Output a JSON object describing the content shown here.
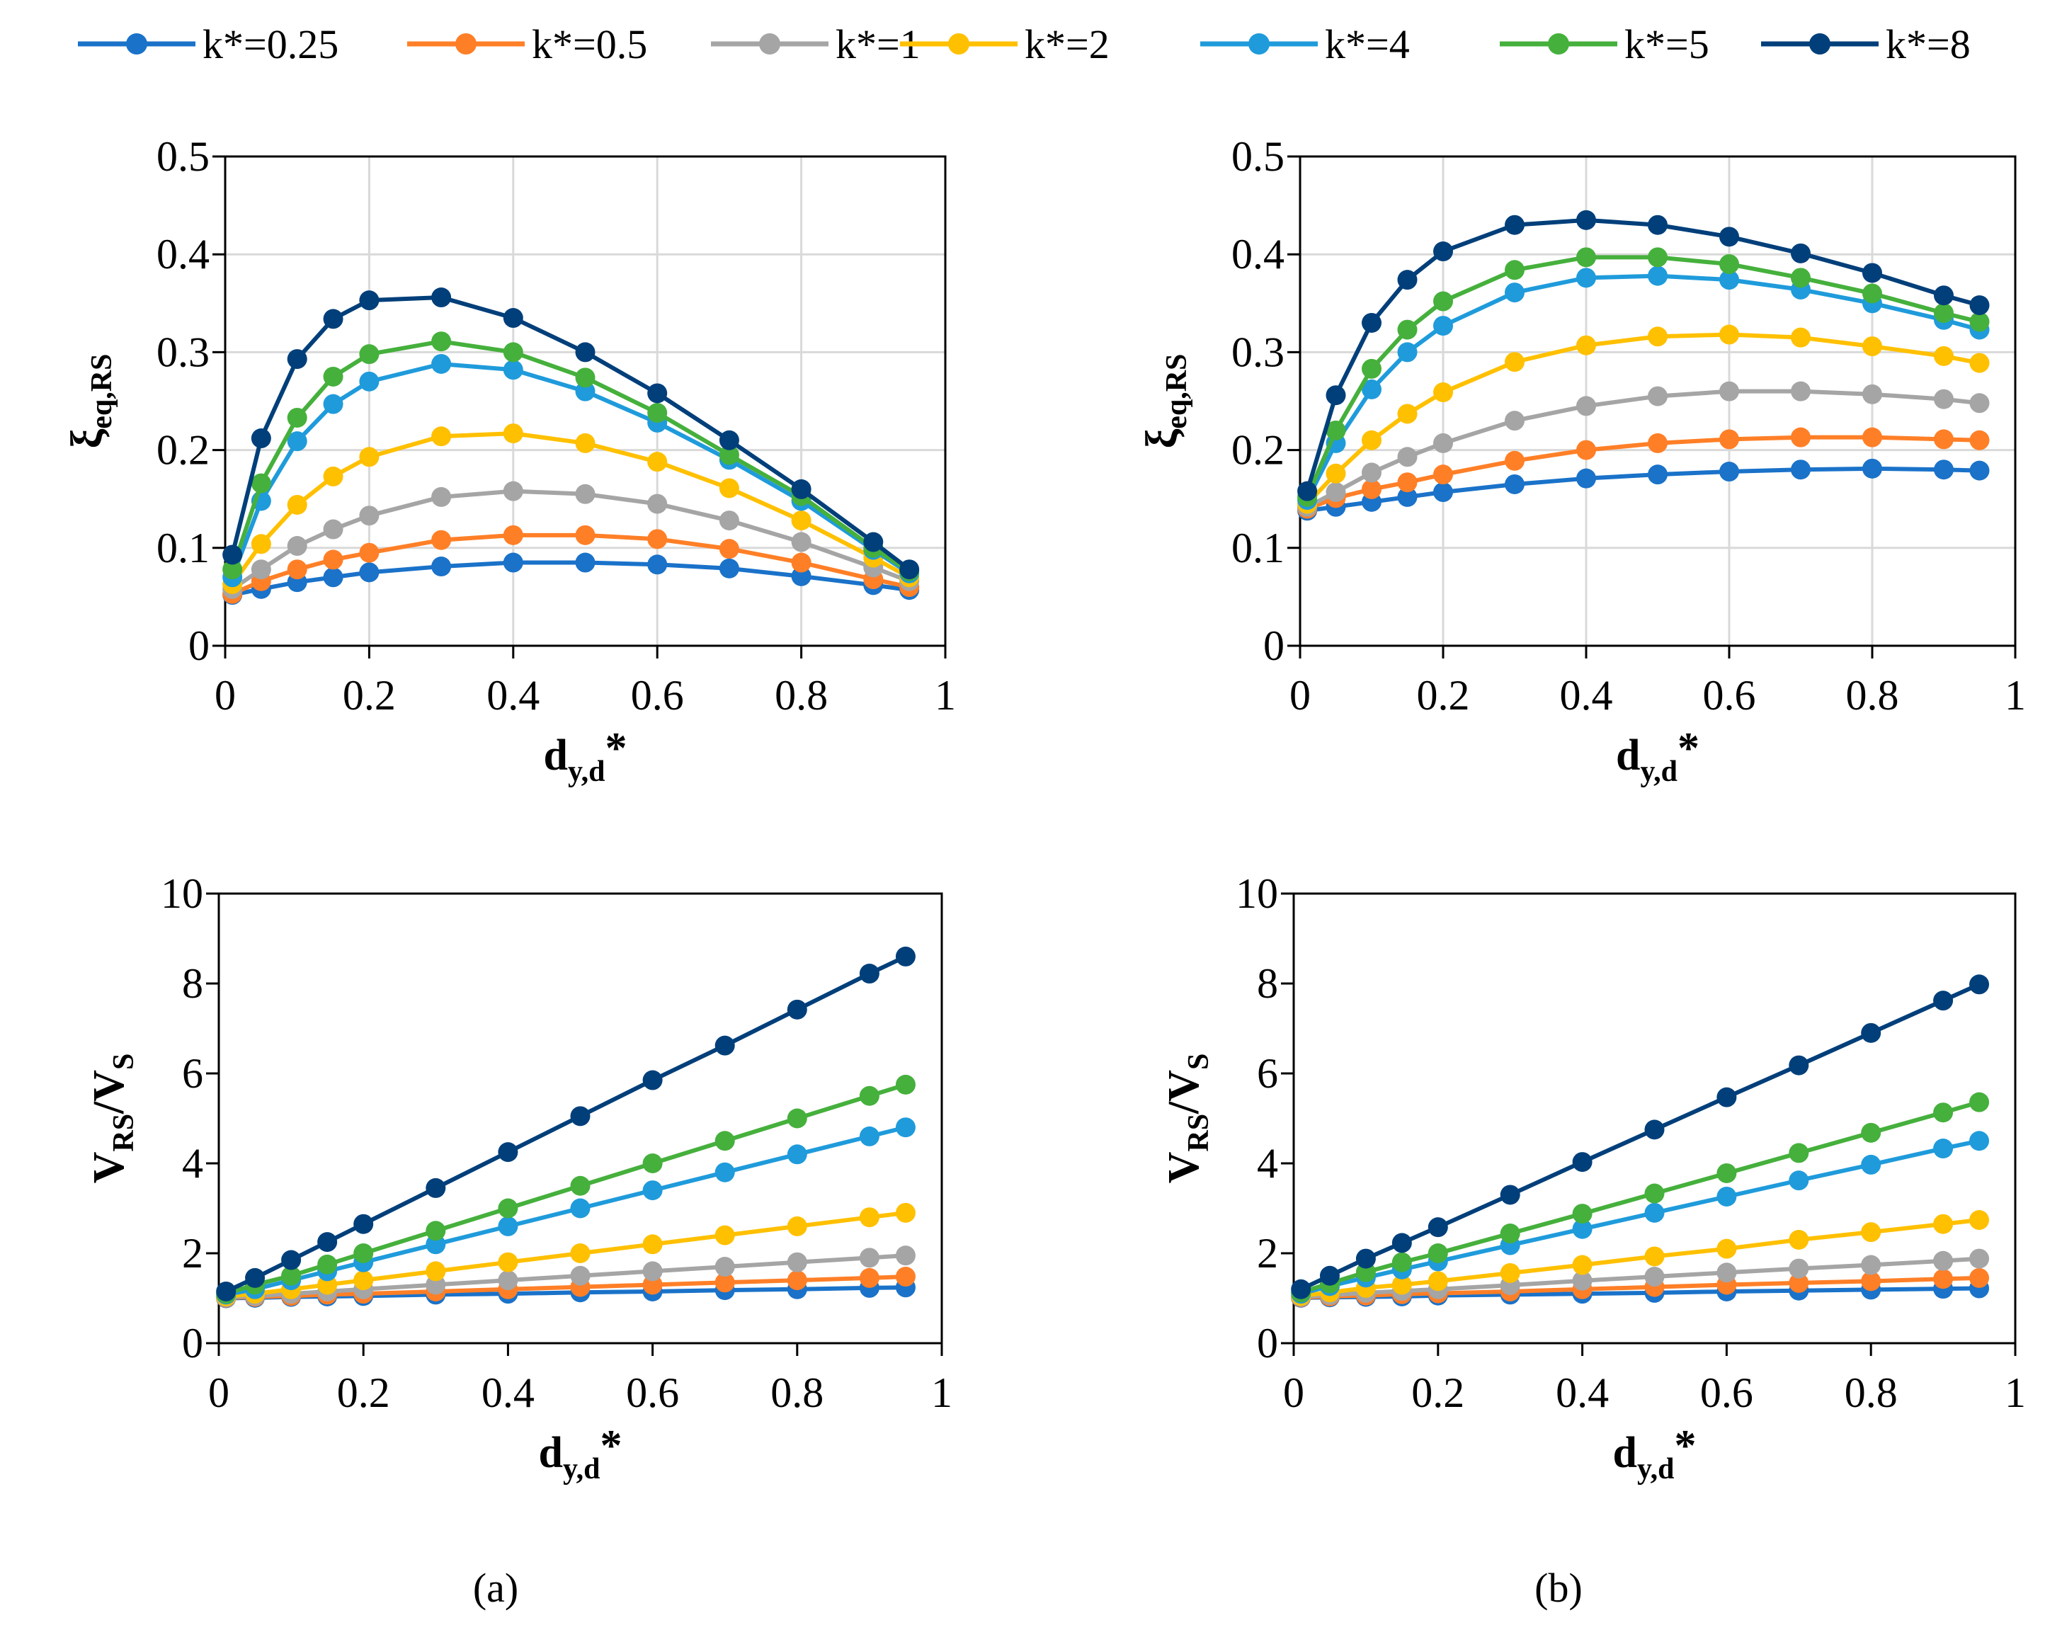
{
  "colors": {
    "k*=0.25": "#1A72C9",
    "k*=0.5": "#FF7F27",
    "k*=1": "#A5A5A5",
    "k*=2": "#FFC000",
    "k*=4": "#1F9BDB",
    "k*=5": "#45B03C",
    "k*=8": "#003F7A",
    "grid": "#D9D9D9"
  },
  "legend": [
    "k*=0.25",
    "k*=0.5",
    "k*=1",
    "k*=2",
    "k*=4",
    "k*=5",
    "k*=8"
  ],
  "panel_labels": [
    "(a)",
    "(b)"
  ],
  "chart_data": [
    {
      "id": "a-top",
      "type": "line",
      "panel": "(a)",
      "xlabel": {
        "main": "d",
        "sub": "y,d",
        "sup": "*"
      },
      "ylabel": {
        "main": "ξ",
        "sub": "eq,RS"
      },
      "xlim": [
        0,
        1
      ],
      "ylim": [
        0,
        0.5
      ],
      "xticks": [
        "0",
        "0.2",
        "0.4",
        "0.6",
        "0.8",
        "1"
      ],
      "yticks": [
        "0",
        "0.1",
        "0.2",
        "0.3",
        "0.4",
        "0.5"
      ],
      "grid": true,
      "x": [
        0.01,
        0.05,
        0.1,
        0.15,
        0.2,
        0.3,
        0.4,
        0.5,
        0.6,
        0.7,
        0.8,
        0.9,
        0.95
      ],
      "series": [
        {
          "name": "k*=0.25",
          "values": [
            0.052,
            0.058,
            0.065,
            0.07,
            0.075,
            0.081,
            0.085,
            0.085,
            0.083,
            0.079,
            0.071,
            0.062,
            0.057
          ]
        },
        {
          "name": "k*=0.5",
          "values": [
            0.053,
            0.066,
            0.078,
            0.088,
            0.095,
            0.108,
            0.113,
            0.113,
            0.109,
            0.099,
            0.085,
            0.068,
            0.06
          ]
        },
        {
          "name": "k*=1",
          "values": [
            0.058,
            0.078,
            0.102,
            0.119,
            0.133,
            0.152,
            0.158,
            0.155,
            0.145,
            0.128,
            0.106,
            0.08,
            0.066
          ]
        },
        {
          "name": "k*=2",
          "values": [
            0.063,
            0.104,
            0.144,
            0.173,
            0.193,
            0.214,
            0.217,
            0.207,
            0.188,
            0.161,
            0.128,
            0.09,
            0.07
          ]
        },
        {
          "name": "k*=4",
          "values": [
            0.07,
            0.148,
            0.209,
            0.247,
            0.27,
            0.288,
            0.282,
            0.26,
            0.228,
            0.19,
            0.148,
            0.098,
            0.074
          ]
        },
        {
          "name": "k*=5",
          "values": [
            0.078,
            0.166,
            0.233,
            0.275,
            0.298,
            0.311,
            0.3,
            0.274,
            0.238,
            0.195,
            0.153,
            0.1,
            0.076
          ]
        },
        {
          "name": "k*=8",
          "values": [
            0.093,
            0.212,
            0.293,
            0.334,
            0.353,
            0.356,
            0.335,
            0.3,
            0.258,
            0.21,
            0.16,
            0.106,
            0.078
          ]
        }
      ]
    },
    {
      "id": "b-top",
      "type": "line",
      "panel": "(b)",
      "xlabel": {
        "main": "d",
        "sub": "y,d",
        "sup": "*"
      },
      "ylabel": {
        "main": "ξ",
        "sub": "eq,RS"
      },
      "xlim": [
        0,
        1
      ],
      "ylim": [
        0,
        0.5
      ],
      "xticks": [
        "0",
        "0.2",
        "0.4",
        "0.6",
        "0.8",
        "1"
      ],
      "yticks": [
        "0",
        "0.1",
        "0.2",
        "0.3",
        "0.4",
        "0.5"
      ],
      "grid": true,
      "x": [
        0.01,
        0.05,
        0.1,
        0.15,
        0.2,
        0.3,
        0.4,
        0.5,
        0.6,
        0.7,
        0.8,
        0.9,
        0.95
      ],
      "series": [
        {
          "name": "k*=0.25",
          "values": [
            0.138,
            0.142,
            0.147,
            0.152,
            0.157,
            0.165,
            0.171,
            0.175,
            0.178,
            0.18,
            0.181,
            0.18,
            0.179
          ]
        },
        {
          "name": "k*=0.5",
          "values": [
            0.14,
            0.151,
            0.16,
            0.167,
            0.175,
            0.189,
            0.2,
            0.207,
            0.211,
            0.213,
            0.213,
            0.211,
            0.21
          ]
        },
        {
          "name": "k*=1",
          "values": [
            0.142,
            0.157,
            0.177,
            0.193,
            0.207,
            0.23,
            0.245,
            0.255,
            0.26,
            0.26,
            0.257,
            0.252,
            0.248
          ]
        },
        {
          "name": "k*=2",
          "values": [
            0.145,
            0.176,
            0.21,
            0.237,
            0.259,
            0.29,
            0.307,
            0.316,
            0.318,
            0.315,
            0.306,
            0.296,
            0.289
          ]
        },
        {
          "name": "k*=4",
          "values": [
            0.149,
            0.207,
            0.262,
            0.3,
            0.327,
            0.361,
            0.376,
            0.378,
            0.374,
            0.364,
            0.35,
            0.333,
            0.323
          ]
        },
        {
          "name": "k*=5",
          "values": [
            0.152,
            0.22,
            0.283,
            0.323,
            0.352,
            0.384,
            0.397,
            0.397,
            0.39,
            0.376,
            0.36,
            0.34,
            0.331
          ]
        },
        {
          "name": "k*=8",
          "values": [
            0.158,
            0.256,
            0.33,
            0.374,
            0.403,
            0.43,
            0.435,
            0.43,
            0.418,
            0.401,
            0.381,
            0.358,
            0.348
          ]
        }
      ]
    },
    {
      "id": "a-bottom",
      "type": "line",
      "panel": "(a)",
      "xlabel": {
        "main": "d",
        "sub": "y,d",
        "sup": "*"
      },
      "ylabel": {
        "main": "V",
        "sub": "RS",
        "main2": "/V",
        "sub2": "S"
      },
      "xlim": [
        0,
        1
      ],
      "ylim": [
        0,
        10
      ],
      "xticks": [
        "0",
        "0.2",
        "0.4",
        "0.6",
        "0.8",
        "1"
      ],
      "yticks": [
        "0",
        "2",
        "4",
        "6",
        "8",
        "10"
      ],
      "grid": false,
      "x": [
        0.01,
        0.05,
        0.1,
        0.15,
        0.2,
        0.3,
        0.4,
        0.5,
        0.6,
        0.7,
        0.8,
        0.9,
        0.95
      ],
      "series": [
        {
          "name": "k*=0.25",
          "values": [
            1.0,
            1.01,
            1.03,
            1.04,
            1.05,
            1.08,
            1.1,
            1.13,
            1.15,
            1.18,
            1.2,
            1.23,
            1.24
          ]
        },
        {
          "name": "k*=0.5",
          "values": [
            1.01,
            1.03,
            1.05,
            1.08,
            1.1,
            1.15,
            1.2,
            1.25,
            1.3,
            1.35,
            1.4,
            1.45,
            1.48
          ]
        },
        {
          "name": "k*=1",
          "values": [
            1.02,
            1.05,
            1.1,
            1.15,
            1.2,
            1.3,
            1.4,
            1.5,
            1.6,
            1.7,
            1.8,
            1.9,
            1.95
          ]
        },
        {
          "name": "k*=2",
          "values": [
            1.04,
            1.1,
            1.2,
            1.3,
            1.4,
            1.6,
            1.8,
            2.0,
            2.2,
            2.4,
            2.6,
            2.8,
            2.9
          ]
        },
        {
          "name": "k*=4",
          "values": [
            1.08,
            1.2,
            1.4,
            1.6,
            1.8,
            2.2,
            2.6,
            3.0,
            3.4,
            3.8,
            4.2,
            4.6,
            4.8
          ]
        },
        {
          "name": "k*=5",
          "values": [
            1.1,
            1.3,
            1.5,
            1.75,
            2.0,
            2.5,
            3.0,
            3.5,
            4.0,
            4.5,
            5.0,
            5.5,
            5.75
          ]
        },
        {
          "name": "k*=8",
          "values": [
            1.15,
            1.45,
            1.85,
            2.25,
            2.65,
            3.45,
            4.25,
            5.05,
            5.85,
            6.62,
            7.42,
            8.22,
            8.6
          ]
        }
      ]
    },
    {
      "id": "b-bottom",
      "type": "line",
      "panel": "(b)",
      "xlabel": {
        "main": "d",
        "sub": "y,d",
        "sup": "*"
      },
      "ylabel": {
        "main": "V",
        "sub": "RS",
        "main2": "/V",
        "sub2": "S"
      },
      "xlim": [
        0,
        1
      ],
      "ylim": [
        0,
        10
      ],
      "xticks": [
        "0",
        "0.2",
        "0.4",
        "0.6",
        "0.8",
        "1"
      ],
      "yticks": [
        "0",
        "2",
        "4",
        "6",
        "8",
        "10"
      ],
      "grid": false,
      "x": [
        0.01,
        0.05,
        0.1,
        0.15,
        0.2,
        0.3,
        0.4,
        0.5,
        0.6,
        0.7,
        0.8,
        0.9,
        0.95
      ],
      "series": [
        {
          "name": "k*=0.25",
          "values": [
            1.01,
            1.02,
            1.03,
            1.04,
            1.06,
            1.08,
            1.1,
            1.12,
            1.15,
            1.17,
            1.19,
            1.21,
            1.22
          ]
        },
        {
          "name": "k*=0.5",
          "values": [
            1.02,
            1.04,
            1.06,
            1.09,
            1.11,
            1.15,
            1.2,
            1.25,
            1.3,
            1.34,
            1.38,
            1.43,
            1.45
          ]
        },
        {
          "name": "k*=1",
          "values": [
            1.03,
            1.07,
            1.12,
            1.16,
            1.2,
            1.29,
            1.39,
            1.48,
            1.57,
            1.66,
            1.74,
            1.83,
            1.88
          ]
        },
        {
          "name": "k*=2",
          "values": [
            1.05,
            1.13,
            1.23,
            1.3,
            1.38,
            1.56,
            1.74,
            1.93,
            2.1,
            2.3,
            2.47,
            2.65,
            2.74
          ]
        },
        {
          "name": "k*=4",
          "values": [
            1.1,
            1.27,
            1.46,
            1.64,
            1.82,
            2.18,
            2.54,
            2.9,
            3.26,
            3.62,
            3.97,
            4.33,
            4.5
          ]
        },
        {
          "name": "k*=5",
          "values": [
            1.13,
            1.33,
            1.58,
            1.8,
            2.0,
            2.44,
            2.88,
            3.33,
            3.78,
            4.23,
            4.68,
            5.13,
            5.36
          ]
        },
        {
          "name": "k*=8",
          "values": [
            1.2,
            1.5,
            1.88,
            2.23,
            2.58,
            3.3,
            4.03,
            4.75,
            5.47,
            6.18,
            6.9,
            7.62,
            7.98
          ]
        }
      ]
    }
  ]
}
